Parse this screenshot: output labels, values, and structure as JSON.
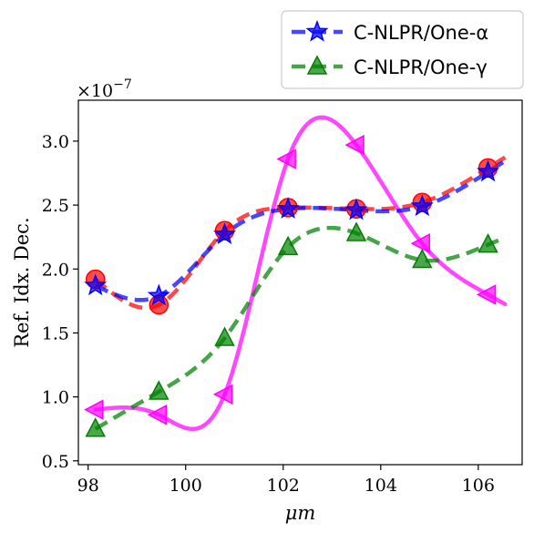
{
  "chart_data": {
    "type": "line",
    "title": "",
    "xlabel": "μm",
    "ylabel": "Ref. Idx. Dec.",
    "y_multiplier": "×10",
    "y_multiplier_exp": "−7",
    "xlim": [
      97.8,
      106.9
    ],
    "ylim": [
      0.47,
      3.32
    ],
    "x_ticks": [
      98,
      100,
      102,
      104,
      106
    ],
    "x_tick_labels": [
      "98",
      "100",
      "102",
      "104",
      "106"
    ],
    "y_ticks": [
      0.5,
      1.0,
      1.5,
      2.0,
      2.5,
      3.0
    ],
    "y_tick_labels": [
      "0.5",
      "1.0",
      "1.5",
      "2.0",
      "2.5",
      "3.0"
    ],
    "legend_position": "top-right, outside above plot",
    "series": [
      {
        "key": "red",
        "color": "#ff0000",
        "marker": "circle",
        "line_style": "dashed",
        "in_legend": false,
        "x": [
          98.15,
          99.45,
          100.8,
          102.1,
          103.5,
          104.85,
          106.2
        ],
        "y": [
          1.92,
          1.72,
          2.3,
          2.48,
          2.47,
          2.52,
          2.79
        ]
      },
      {
        "key": "magenta",
        "color": "#ff00ff",
        "marker": "triangle-left",
        "line_style": "solid",
        "in_legend": false,
        "x": [
          98.15,
          99.45,
          100.8,
          102.1,
          103.5,
          104.85,
          106.2
        ],
        "y": [
          0.9,
          0.86,
          1.02,
          2.86,
          2.97,
          2.2,
          1.8
        ]
      },
      {
        "key": "blue",
        "name": "C-NLPR/One-α",
        "color": "#0000ff",
        "marker": "star",
        "line_style": "dashed",
        "in_legend": true,
        "x": [
          98.15,
          99.45,
          100.8,
          102.1,
          103.5,
          104.85,
          106.2
        ],
        "y": [
          1.87,
          1.79,
          2.27,
          2.47,
          2.46,
          2.49,
          2.76
        ]
      },
      {
        "key": "green",
        "name": "C-NLPR/One-γ",
        "color": "#008000",
        "marker": "triangle-up",
        "line_style": "dashed",
        "in_legend": true,
        "x": [
          98.15,
          99.45,
          100.8,
          102.1,
          103.5,
          104.85,
          106.2
        ],
        "y": [
          0.75,
          1.04,
          1.46,
          2.17,
          2.28,
          2.07,
          2.19
        ]
      }
    ]
  }
}
